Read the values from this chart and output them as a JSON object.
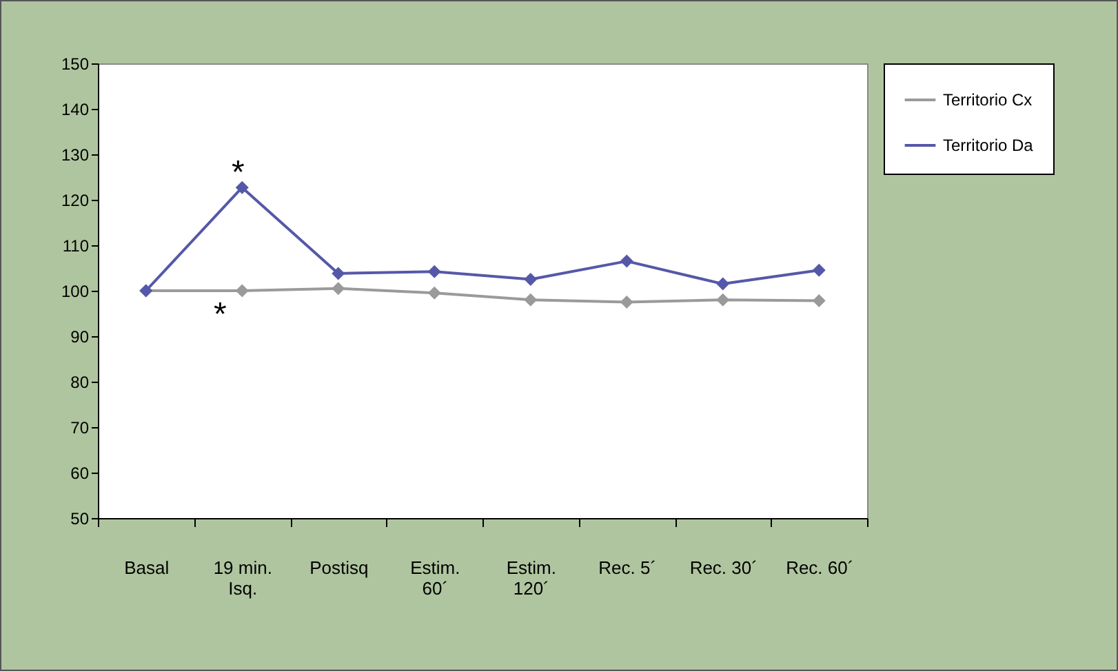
{
  "chart_data": {
    "type": "line",
    "categories": [
      "Basal",
      "19 min.\nIsq.",
      "Postisq",
      "Estim.\n60´",
      "Estim.\n120´",
      "Rec. 5´",
      "Rec. 30´",
      "Rec. 60´"
    ],
    "series": [
      {
        "name": "Territorio Cx",
        "color": "#9a9a9a",
        "values": [
          100,
          100,
          100.5,
          99.5,
          98,
          97.5,
          98,
          97.8
        ]
      },
      {
        "name": "Territorio Da",
        "color": "#5558a8",
        "values": [
          100,
          122.7,
          103.8,
          104.2,
          102.5,
          106.5,
          101.5,
          104.5
        ]
      }
    ],
    "annotations": [
      {
        "text": "*",
        "x": "19 min.\nIsq.",
        "y": 122.7
      },
      {
        "text": "*",
        "x": "19 min.\nIsq.",
        "y": 100
      }
    ],
    "ylim": [
      50,
      150
    ],
    "yticks": [
      50,
      60,
      70,
      80,
      90,
      100,
      110,
      120,
      130,
      140,
      150
    ],
    "legend": "right",
    "marker": "diamond",
    "line_style": "solid",
    "grid": false
  }
}
